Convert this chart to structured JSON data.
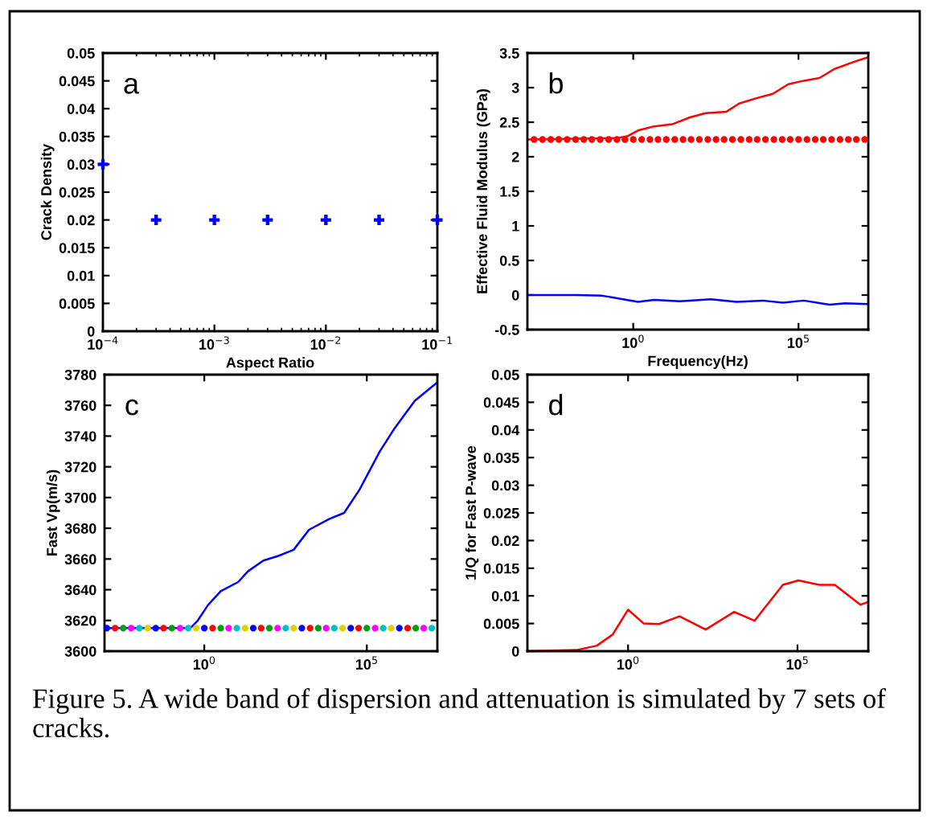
{
  "chart_data": [
    {
      "type": "scatter",
      "xlabel": "Aspect Ratio",
      "ylabel": "Crack Density",
      "log": "x",
      "marker": "cross",
      "annotations": [
        "a"
      ],
      "xlim": [
        0.0001,
        0.1
      ],
      "xticks": [
        {
          "value": 0.0001,
          "label": "10$^{−4}$"
        },
        {
          "value": 0.001,
          "label": "10$^{−3}$"
        },
        {
          "value": 0.01,
          "label": "10$^{−2}$"
        },
        {
          "value": 0.1,
          "label": "10$^{−1}$"
        }
      ],
      "ylim": [
        0,
        0.05
      ],
      "yticks": [
        0,
        0.005,
        0.01,
        0.015,
        0.02,
        0.025,
        0.03,
        0.035,
        0.04,
        0.045,
        0.05
      ],
      "series": [
        {
          "color": "#0000ff",
          "x": [
            0.0001,
            0.0003,
            0.001,
            0.003,
            0.01,
            0.03,
            0.1
          ],
          "values": [
            0.03,
            0.02,
            0.02,
            0.02,
            0.02,
            0.02,
            0.02
          ]
        }
      ]
    },
    {
      "type": "line",
      "xlabel": "Frequency(Hz)",
      "ylabel": "Effective Fluid Modulus (GPa)",
      "log": "x",
      "annotations": [
        "b"
      ],
      "xlim": [
        0.00063,
        12900000
      ],
      "xticks": [
        {
          "value": 1,
          "label": "10$^{0}$"
        },
        {
          "value": 100000,
          "label": "10$^{5}$"
        }
      ],
      "ylim": [
        -0.5,
        3.5
      ],
      "yticks": [
        -0.5,
        0,
        0.5,
        1,
        1.5,
        2,
        2.5,
        3,
        3.5
      ],
      "series": [
        {
          "type": "scatter",
          "marker": "circle",
          "color": "#ff0000",
          "x": [
            0.001,
            0.0018,
            0.0032,
            0.0056,
            0.01,
            0.018,
            0.032,
            0.056,
            0.1,
            0.18,
            0.32,
            0.56,
            1,
            1.8,
            3.2,
            5.6,
            10,
            18,
            32,
            56,
            100,
            180,
            320,
            560,
            1000,
            1800,
            3200,
            5600,
            10000,
            18000,
            32000,
            56000,
            100000,
            180000,
            320000,
            560000,
            1000000,
            1800000,
            3200000,
            5600000,
            10000000
          ],
          "values": [
            2.25,
            2.25,
            2.25,
            2.25,
            2.25,
            2.25,
            2.25,
            2.25,
            2.25,
            2.25,
            2.25,
            2.25,
            2.25,
            2.25,
            2.25,
            2.25,
            2.25,
            2.25,
            2.25,
            2.25,
            2.25,
            2.25,
            2.25,
            2.25,
            2.25,
            2.25,
            2.25,
            2.25,
            2.25,
            2.25,
            2.25,
            2.25,
            2.25,
            2.25,
            2.25,
            2.25,
            2.25,
            2.25,
            2.25,
            2.25,
            2.25
          ]
        },
        {
          "color": "#ff0000",
          "x": [
            0.00063,
            0.34,
            0.69,
            1.4,
            4.3,
            15,
            52,
            155,
            650,
            1600,
            5600,
            16600,
            49000,
            145000,
            430000,
            1230000,
            5200000,
            12900000
          ],
          "values": [
            2.25,
            2.27,
            2.3,
            2.38,
            2.44,
            2.47,
            2.57,
            2.63,
            2.65,
            2.77,
            2.85,
            2.91,
            3.05,
            3.1,
            3.14,
            3.27,
            3.38,
            3.44
          ]
        },
        {
          "color": "#0000ff",
          "x": [
            0.00063,
            0.019,
            0.115,
            0.49,
            1.4,
            4.3,
            26,
            220,
            1350,
            8100,
            34000,
            145000,
            870000,
            2570000,
            12900000
          ],
          "values": [
            0,
            0,
            -0.01,
            -0.06,
            -0.1,
            -0.07,
            -0.09,
            -0.06,
            -0.1,
            -0.08,
            -0.11,
            -0.08,
            -0.14,
            -0.12,
            -0.13
          ]
        }
      ]
    },
    {
      "type": "line",
      "ylabel": "Fast Vp(m/s)",
      "log": "x",
      "annotations": [
        "c"
      ],
      "xlim": [
        0.00085,
        14800000
      ],
      "xticks": [
        {
          "value": 1,
          "label": "10$^{0}$"
        },
        {
          "value": 100000,
          "label": "10$^{5}$"
        }
      ],
      "ylim": [
        3600,
        3780
      ],
      "yticks": [
        3600,
        3620,
        3640,
        3660,
        3680,
        3700,
        3720,
        3740,
        3760,
        3780
      ],
      "series": [
        {
          "type": "scatter",
          "marker": "circle",
          "x": [
            0.001,
            0.0018,
            0.0032,
            0.0056,
            0.01,
            0.018,
            0.032,
            0.056,
            0.1,
            0.18,
            0.32,
            0.56,
            1,
            1.8,
            3.2,
            5.6,
            10,
            18,
            32,
            56,
            100,
            180,
            320,
            560,
            1000,
            1800,
            3200,
            5600,
            10000,
            18000,
            32000,
            56000,
            100000,
            180000,
            320000,
            560000,
            1000000,
            1800000,
            3200000,
            5600000,
            10000000
          ],
          "values": [
            3615,
            3615,
            3615,
            3615,
            3615,
            3615,
            3615,
            3615,
            3615,
            3615,
            3615,
            3615,
            3615,
            3615,
            3615,
            3615,
            3615,
            3615,
            3615,
            3615,
            3615,
            3615,
            3615,
            3615,
            3615,
            3615,
            3615,
            3615,
            3615,
            3615,
            3615,
            3615,
            3615,
            3615,
            3615,
            3615,
            3615,
            3615,
            3615,
            3615,
            3615
          ],
          "colors": [
            "#0000ff",
            "#ff0000",
            "#00a000",
            "#ff00ff",
            "#00c0c0",
            "#e0d000",
            "#0000ff",
            "#ff0000",
            "#00a000",
            "#ff00ff",
            "#00c0c0",
            "#e0d000",
            "#0000ff",
            "#ff0000",
            "#00a000",
            "#ff00ff",
            "#00c0c0",
            "#e0d000",
            "#0000ff",
            "#ff0000",
            "#00a000",
            "#ff00ff",
            "#00c0c0",
            "#e0d000",
            "#0000ff",
            "#ff0000",
            "#00a000",
            "#ff00ff",
            "#00c0c0",
            "#e0d000",
            "#0000ff",
            "#ff0000",
            "#00a000",
            "#ff00ff",
            "#00c0c0",
            "#e0d000",
            "#0000ff",
            "#ff0000",
            "#00a000",
            "#ff00ff",
            "#00c0c0"
          ]
        },
        {
          "color": "#0000ff",
          "x": [
            0.00085,
            0.37,
            0.63,
            1.3,
            3.2,
            11,
            22,
            66,
            190,
            560,
            1660,
            6900,
            20000,
            59000,
            250000,
            710000,
            3000000,
            14800000
          ],
          "values": [
            3615,
            3615,
            3620,
            3630,
            3639,
            3645,
            3652,
            3659,
            3662,
            3666,
            3679,
            3686,
            3690,
            3705,
            3730,
            3745,
            3763,
            3775
          ]
        }
      ]
    },
    {
      "type": "line",
      "ylabel": "1/Q for Fast P-wave",
      "log": "x",
      "annotations": [
        "d",
        "Figure 5. A wide band of dispersion and attenuation is simulated by 7 sets of cracks."
      ],
      "xlim": [
        0.00107,
        12300000
      ],
      "xticks": [
        {
          "value": 1,
          "label": "10$^{0}$"
        },
        {
          "value": 100000,
          "label": "10$^{5}$"
        }
      ],
      "ylim": [
        0,
        0.05
      ],
      "yticks": [
        0,
        0.005,
        0.01,
        0.015,
        0.02,
        0.025,
        0.03,
        0.035,
        0.04,
        0.045,
        0.05
      ],
      "series": [
        {
          "color": "#ff0000",
          "x": [
            0.00107,
            0.03,
            0.12,
            0.35,
            1,
            2.9,
            8.2,
            33,
            195,
            1350,
            5400,
            37000,
            107000,
            440000,
            1260000,
            7200000,
            12300000
          ],
          "values": [
            0,
            0.0002,
            0.001,
            0.003,
            0.0075,
            0.005,
            0.0049,
            0.0063,
            0.0039,
            0.0071,
            0.0055,
            0.012,
            0.0128,
            0.012,
            0.012,
            0.0084,
            0.0089
          ]
        }
      ]
    }
  ]
}
